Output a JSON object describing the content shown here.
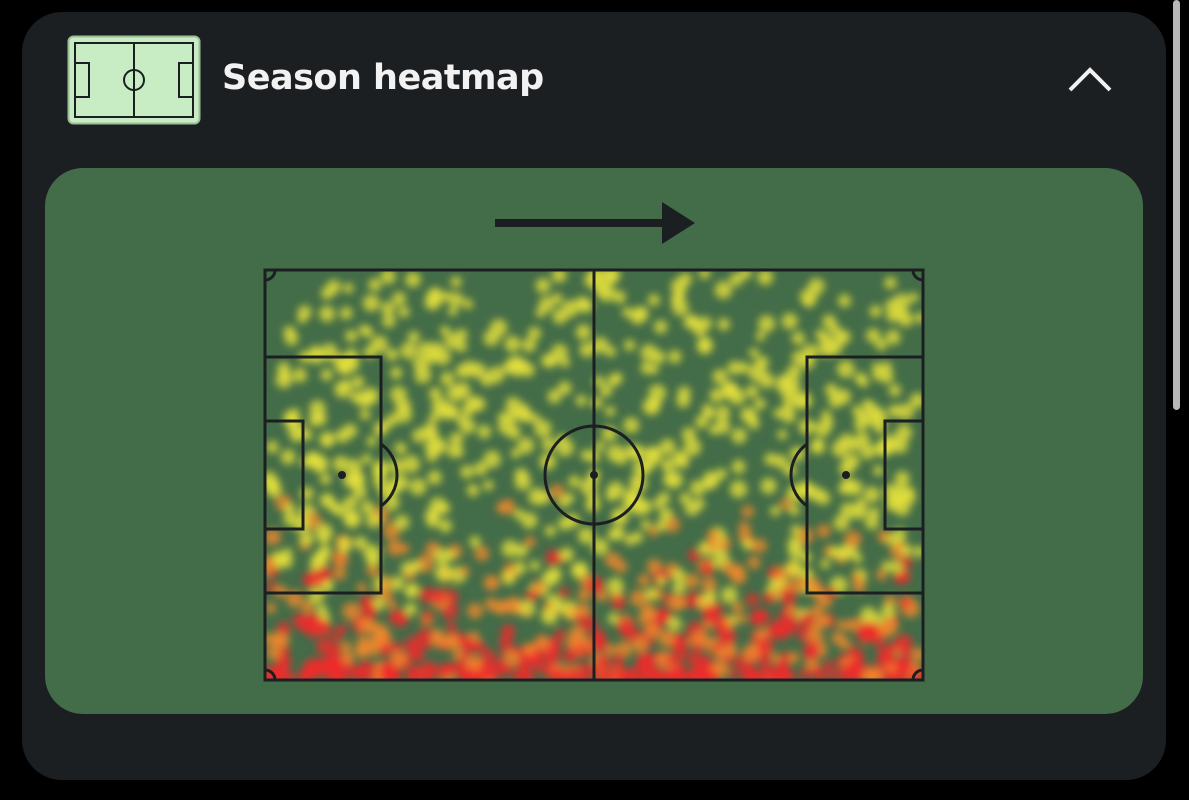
{
  "header": {
    "title": "Season heatmap"
  }
}
